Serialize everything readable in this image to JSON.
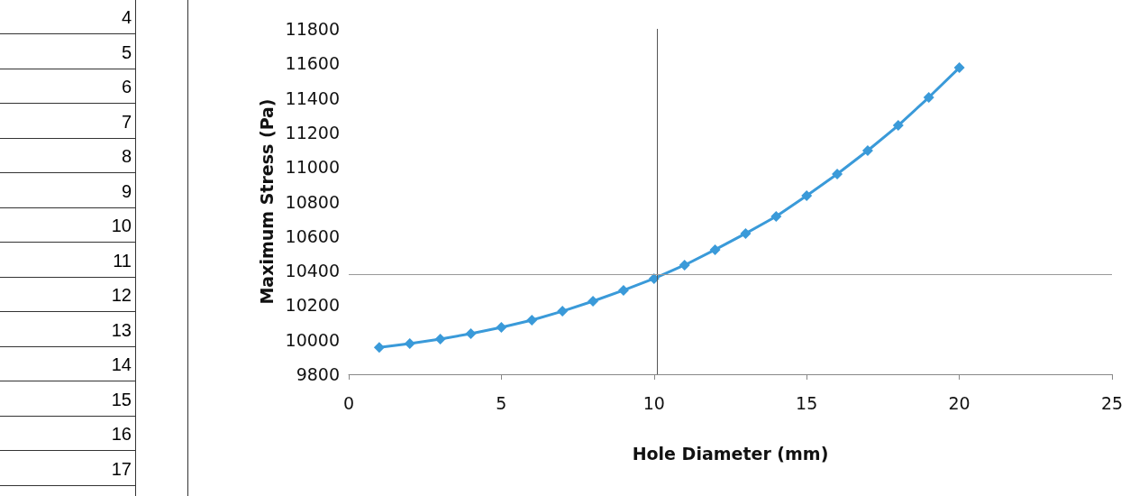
{
  "chart_data": {
    "type": "line",
    "xlabel": "Hole Diameter (mm)",
    "ylabel": "Maximum Stress (Pa)",
    "x": [
      1,
      2,
      3,
      4,
      5,
      6,
      7,
      8,
      9,
      10,
      11,
      12,
      13,
      14,
      15,
      16,
      17,
      18,
      19,
      20
    ],
    "series": [
      {
        "color": "#3a9ad9",
        "values": [
          9955,
          9978,
          10004,
          10035,
          10072,
          10113,
          10165,
          10223,
          10286,
          10354,
          10432,
          10521,
          10615,
          10714,
          10834,
          10959,
          11095,
          11241,
          11403,
          11575
        ]
      }
    ],
    "xlim": [
      0,
      25
    ],
    "xticks": [
      0,
      5,
      10,
      15,
      20,
      25
    ],
    "ylim": [
      9800,
      11800
    ],
    "yticks": [
      9800,
      10000,
      10200,
      10400,
      10600,
      10800,
      11000,
      11200,
      11400,
      11600,
      11800
    ],
    "marker": "diamond",
    "line_style": "solid",
    "grid": false,
    "ref_lines": [
      {
        "axis": "x",
        "value": 10.1,
        "color": "#555555"
      },
      {
        "axis": "y",
        "value": 10380,
        "color": "#999999"
      }
    ],
    "annotations": [
      "4",
      "5",
      "6",
      "7",
      "8",
      "9",
      "10",
      "11",
      "12",
      "13",
      "14",
      "15",
      "16",
      "17"
    ]
  }
}
